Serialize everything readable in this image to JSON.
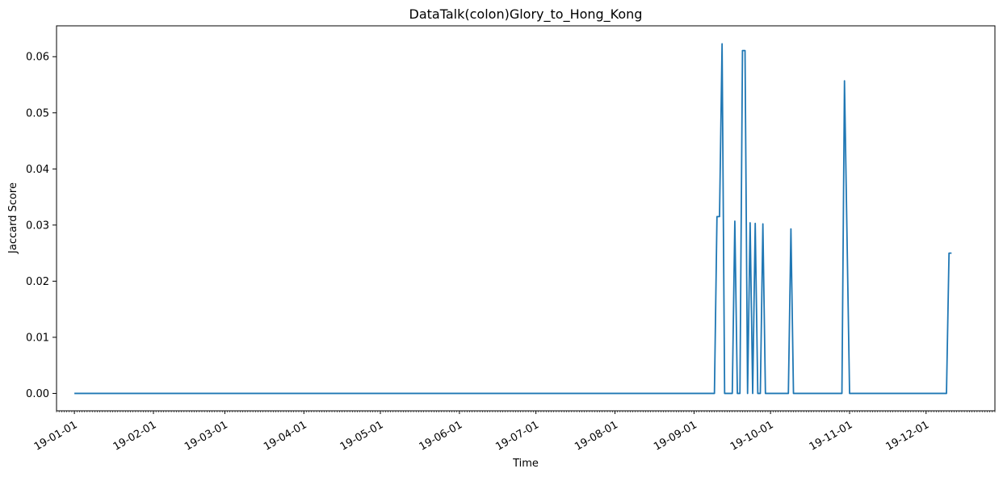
{
  "chart_data": {
    "type": "line",
    "title": "DataTalk(colon)Glory_to_Hong_Kong",
    "xlabel": "Time",
    "ylabel": "Jaccard Score",
    "xlim": [
      "2018-12-25",
      "2019-12-28"
    ],
    "ylim": [
      -0.0031,
      0.0655
    ],
    "grid": false,
    "line_color": "#1f77b4",
    "x_ticks": [
      {
        "date": "2019-01-01",
        "label": "19-01-01"
      },
      {
        "date": "2019-02-01",
        "label": "19-02-01"
      },
      {
        "date": "2019-03-01",
        "label": "19-03-01"
      },
      {
        "date": "2019-04-01",
        "label": "19-04-01"
      },
      {
        "date": "2019-05-01",
        "label": "19-05-01"
      },
      {
        "date": "2019-06-01",
        "label": "19-06-01"
      },
      {
        "date": "2019-07-01",
        "label": "19-07-01"
      },
      {
        "date": "2019-08-01",
        "label": "19-08-01"
      },
      {
        "date": "2019-09-01",
        "label": "19-09-01"
      },
      {
        "date": "2019-10-01",
        "label": "19-10-01"
      },
      {
        "date": "2019-11-01",
        "label": "19-11-01"
      },
      {
        "date": "2019-12-01",
        "label": "19-12-01"
      }
    ],
    "y_ticks": [
      {
        "value": 0.0,
        "label": "0.00"
      },
      {
        "value": 0.01,
        "label": "0.01"
      },
      {
        "value": 0.02,
        "label": "0.02"
      },
      {
        "value": 0.03,
        "label": "0.03"
      },
      {
        "value": 0.04,
        "label": "0.04"
      },
      {
        "value": 0.05,
        "label": "0.05"
      },
      {
        "value": 0.06,
        "label": "0.06"
      }
    ],
    "series": [
      {
        "x": [
          "2019-01-01",
          "2019-09-09",
          "2019-09-10",
          "2019-09-11",
          "2019-09-12",
          "2019-09-13",
          "2019-09-16",
          "2019-09-17",
          "2019-09-18",
          "2019-09-19",
          "2019-09-20",
          "2019-09-21",
          "2019-09-22",
          "2019-09-23",
          "2019-09-24",
          "2019-09-25",
          "2019-09-26",
          "2019-09-27",
          "2019-09-28",
          "2019-09-29",
          "2019-09-30",
          "2019-10-08",
          "2019-10-09",
          "2019-10-10",
          "2019-10-29",
          "2019-10-30",
          "2019-11-01",
          "2019-12-09",
          "2019-12-10",
          "2019-12-11"
        ],
        "y": [
          0,
          0,
          0.0315,
          0.0315,
          0.0623,
          0,
          0,
          0.0307,
          0,
          0,
          0.0611,
          0.0611,
          0,
          0.0304,
          0,
          0.0303,
          0,
          0,
          0.0302,
          0,
          0,
          0,
          0.0293,
          0,
          0,
          0.0557,
          0,
          0,
          0.025,
          0.025
        ]
      }
    ]
  }
}
